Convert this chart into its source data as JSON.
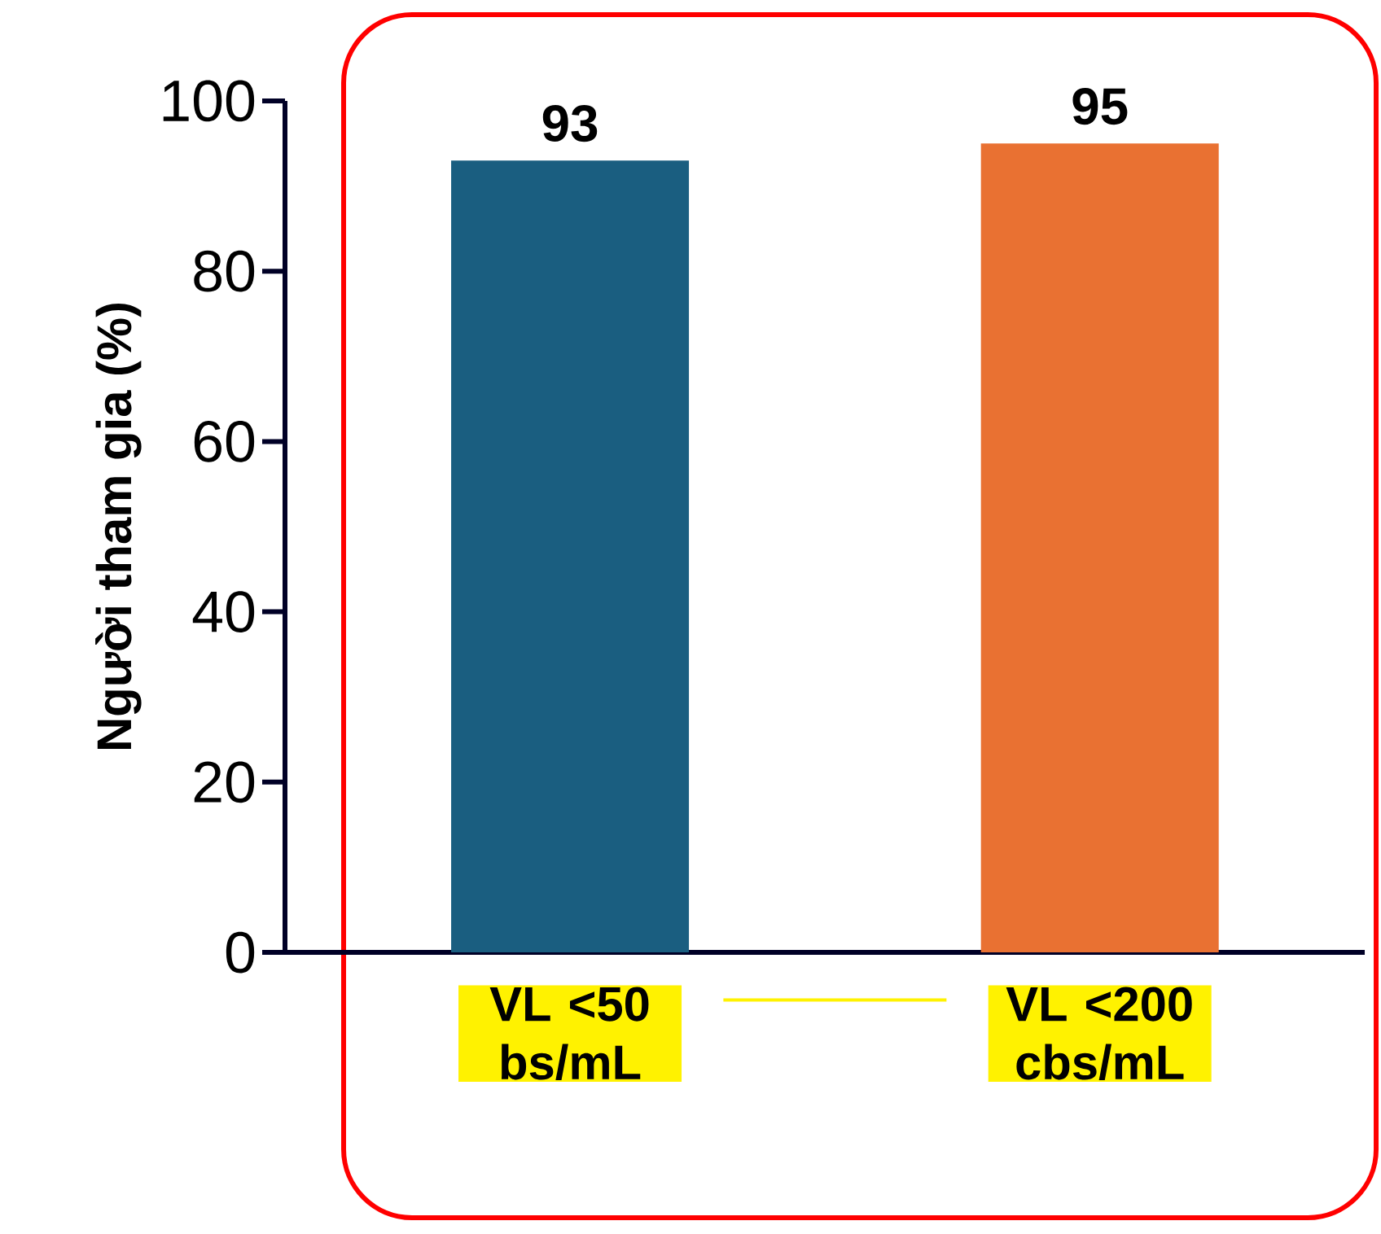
{
  "chart_data": {
    "type": "bar",
    "ylabel": "Người tham gia (%)",
    "categories": [
      "VL <50 bs/mL",
      "VL <200 cbs/mL"
    ],
    "values": [
      93,
      95
    ],
    "colors": [
      "#1a5e80",
      "#e97132"
    ],
    "ylim": [
      0,
      100
    ],
    "yticks": [
      0,
      20,
      40,
      60,
      80,
      100
    ],
    "data_labels": true,
    "grid": false
  }
}
